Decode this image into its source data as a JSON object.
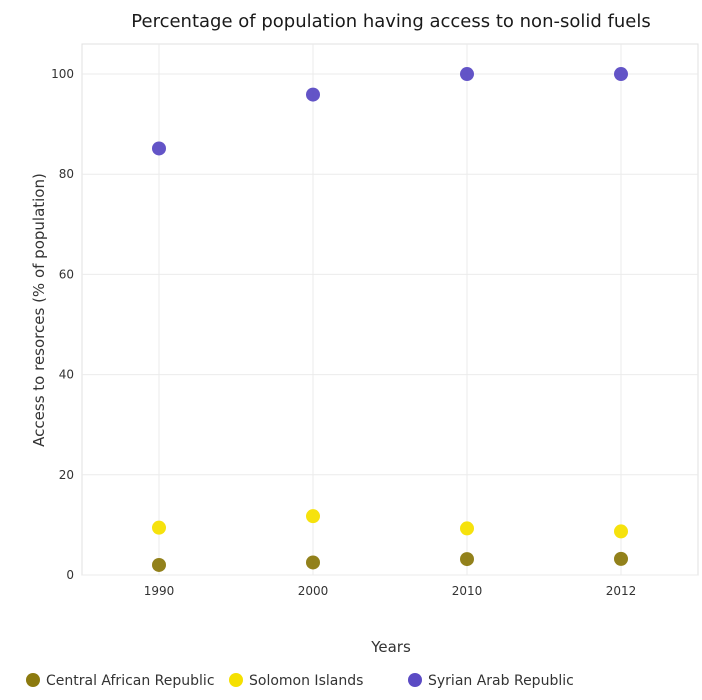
{
  "chart_data": {
    "type": "scatter",
    "title": "Percentage of population having access to non-solid fuels",
    "xlabel": "Years",
    "ylabel": "Access to resorces (% of population)",
    "categories": [
      "1990",
      "2000",
      "2010",
      "2012"
    ],
    "ylim": [
      0,
      106
    ],
    "yticks": [
      0,
      20,
      40,
      60,
      80,
      100
    ],
    "grid": true,
    "legend_position": "bottom",
    "series": [
      {
        "name": "Central African Republic",
        "color": "#8c7a0f",
        "values": [
          2.0,
          2.5,
          3.18,
          3.22
        ]
      },
      {
        "name": "Solomon Islands",
        "color": "#f5e000",
        "values": [
          9.45,
          11.75,
          9.3,
          8.7
        ]
      },
      {
        "name": "Syrian Arab Republic",
        "color": "#5b4bc4",
        "values": [
          85.15,
          95.9,
          100.0,
          100.0
        ]
      }
    ]
  }
}
